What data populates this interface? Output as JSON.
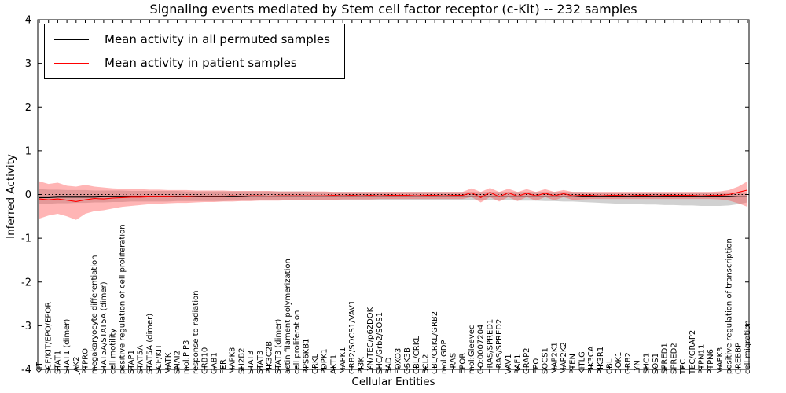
{
  "chart_data": {
    "type": "line",
    "title": "Signaling events mediated by Stem cell factor receptor (c-Kit) -- 232 samples",
    "xlabel": "Cellular Entities",
    "ylabel": "Inferred Activity",
    "ylim": [
      -4,
      4
    ],
    "yticks": [
      -4,
      -3,
      -2,
      -1,
      0,
      1,
      2,
      3,
      4
    ],
    "grid": false,
    "legend_position": "upper left",
    "zero_reference_line": 0,
    "legend": [
      {
        "label": "Mean activity in all permuted samples",
        "color": "#000000"
      },
      {
        "label": "Mean activity in patient samples",
        "color": "#ff0000"
      }
    ],
    "colors": {
      "patient_line": "#ff0000",
      "patient_band": "rgba(255,70,70,0.40)",
      "permuted_line": "#000000",
      "permuted_band": "rgba(140,140,140,0.40)",
      "zero_line": "#000000"
    },
    "categories": [
      "KIT",
      "SCF/KIT/EPO/EPOR",
      "STAT1",
      "STAT1 (dimer)",
      "JAK2",
      "PTPRO",
      "megakaryocyte differentiation",
      "STAT5A/STAT5A (dimer)",
      "cell motility",
      "positive regulation of cell proliferation",
      "STAP1",
      "STAT5A",
      "STAT5A (dimer)",
      "SCF/KIT",
      "MATK",
      "SNAI2",
      "mol:PIP3",
      "response to radiation",
      "GRB10",
      "GAB1",
      "FER",
      "MAPK8",
      "SH2B2",
      "STAT3",
      "STAT3",
      "PIK3C2B",
      "STAT3 (dimer)",
      "actin filament polymerization",
      "cell proliferation",
      "RPS6KB1",
      "CRKL",
      "PDPK1",
      "AKT1",
      "MAPK1",
      "GRB2/SOCS1/VAV1",
      "PI3K",
      "LYN/TEC/p62DOK",
      "SHC/Grb2/SOS1",
      "BAD",
      "FOXO3",
      "GSK3B",
      "CBL/CRKL",
      "BCL2",
      "CBL/CRKL/GRB2",
      "mol:GDP",
      "HRAS",
      "EPOR",
      "mol:Gleevec",
      "GO:0007204",
      "HRAS/SPRED1",
      "HRAS/SPRED2",
      "VAV1",
      "RAF1",
      "GRAP2",
      "EPO",
      "SOCS1",
      "MAP2K1",
      "MAP2K2",
      "PTEN",
      "KITLG",
      "PIK3CA",
      "PIK3R1",
      "CBL",
      "DOK1",
      "GRB2",
      "LYN",
      "SHC1",
      "SOS1",
      "SPRED1",
      "SPRED2",
      "TEC",
      "TEC/GRAP2",
      "PTPN11",
      "PTPN6",
      "MAPK3",
      "positive regulation of transcription",
      "CREBBP",
      "cell migration"
    ],
    "series": [
      {
        "name": "Mean activity in all permuted samples",
        "color": "#000000",
        "values": [
          -0.07,
          -0.07,
          -0.06,
          -0.06,
          -0.06,
          -0.06,
          -0.06,
          -0.05,
          -0.05,
          -0.05,
          -0.05,
          -0.05,
          -0.05,
          -0.05,
          -0.05,
          -0.05,
          -0.05,
          -0.05,
          -0.05,
          -0.05,
          -0.05,
          -0.05,
          -0.05,
          -0.04,
          -0.04,
          -0.04,
          -0.04,
          -0.04,
          -0.04,
          -0.04,
          -0.04,
          -0.04,
          -0.04,
          -0.04,
          -0.04,
          -0.04,
          -0.04,
          -0.04,
          -0.04,
          -0.04,
          -0.04,
          -0.04,
          -0.04,
          -0.04,
          -0.04,
          -0.04,
          -0.04,
          -0.04,
          -0.04,
          -0.04,
          -0.04,
          -0.04,
          -0.04,
          -0.04,
          -0.04,
          -0.04,
          -0.04,
          -0.04,
          -0.04,
          -0.05,
          -0.05,
          -0.05,
          -0.05,
          -0.05,
          -0.05,
          -0.05,
          -0.05,
          -0.05,
          -0.05,
          -0.05,
          -0.05,
          -0.05,
          -0.05,
          -0.05,
          -0.05,
          -0.05,
          -0.04,
          -0.04
        ]
      },
      {
        "name": "Mean activity in patient samples",
        "color": "#ff0000",
        "values": [
          -0.1,
          -0.12,
          -0.1,
          -0.13,
          -0.16,
          -0.12,
          -0.09,
          -0.1,
          -0.08,
          -0.07,
          -0.06,
          -0.06,
          -0.05,
          -0.05,
          -0.05,
          -0.04,
          -0.05,
          -0.04,
          -0.04,
          -0.04,
          -0.04,
          -0.03,
          -0.04,
          -0.03,
          -0.03,
          -0.04,
          -0.03,
          -0.03,
          -0.03,
          -0.03,
          -0.03,
          -0.03,
          -0.02,
          -0.03,
          -0.02,
          -0.03,
          -0.02,
          -0.03,
          -0.02,
          -0.02,
          -0.02,
          -0.03,
          -0.02,
          -0.02,
          -0.03,
          -0.02,
          -0.02,
          0.04,
          -0.07,
          0.05,
          -0.05,
          0.04,
          -0.04,
          0.03,
          -0.03,
          0.03,
          -0.03,
          0.02,
          -0.03,
          -0.02,
          -0.02,
          -0.03,
          -0.02,
          -0.02,
          -0.03,
          -0.02,
          -0.02,
          -0.03,
          -0.02,
          -0.02,
          -0.02,
          -0.02,
          -0.03,
          -0.02,
          -0.02,
          0.0,
          0.05,
          0.1
        ]
      }
    ],
    "bands": [
      {
        "name": "permuted samples spread",
        "color": "rgba(140,140,140,0.40)",
        "upper": [
          0.12,
          0.11,
          0.11,
          0.1,
          0.1,
          0.1,
          0.09,
          0.09,
          0.09,
          0.09,
          0.08,
          0.08,
          0.08,
          0.08,
          0.08,
          0.08,
          0.07,
          0.07,
          0.07,
          0.07,
          0.07,
          0.07,
          0.07,
          0.07,
          0.07,
          0.07,
          0.07,
          0.07,
          0.07,
          0.07,
          0.06,
          0.06,
          0.06,
          0.06,
          0.06,
          0.06,
          0.06,
          0.06,
          0.06,
          0.06,
          0.06,
          0.06,
          0.06,
          0.06,
          0.06,
          0.06,
          0.06,
          0.06,
          0.06,
          0.06,
          0.06,
          0.06,
          0.06,
          0.06,
          0.06,
          0.06,
          0.06,
          0.06,
          0.06,
          0.06,
          0.05,
          0.05,
          0.05,
          0.05,
          0.05,
          0.05,
          0.05,
          0.05,
          0.05,
          0.05,
          0.05,
          0.05,
          0.05,
          0.05,
          0.05,
          0.05,
          0.05,
          0.05
        ],
        "lower": [
          -0.22,
          -0.21,
          -0.2,
          -0.2,
          -0.19,
          -0.19,
          -0.18,
          -0.18,
          -0.17,
          -0.17,
          -0.16,
          -0.16,
          -0.16,
          -0.16,
          -0.16,
          -0.15,
          -0.15,
          -0.15,
          -0.15,
          -0.15,
          -0.15,
          -0.14,
          -0.14,
          -0.14,
          -0.13,
          -0.13,
          -0.13,
          -0.13,
          -0.12,
          -0.12,
          -0.12,
          -0.12,
          -0.12,
          -0.12,
          -0.12,
          -0.12,
          -0.12,
          -0.12,
          -0.12,
          -0.12,
          -0.12,
          -0.12,
          -0.12,
          -0.12,
          -0.12,
          -0.12,
          -0.12,
          -0.12,
          -0.13,
          -0.13,
          -0.13,
          -0.13,
          -0.14,
          -0.14,
          -0.14,
          -0.15,
          -0.15,
          -0.16,
          -0.16,
          -0.17,
          -0.18,
          -0.19,
          -0.2,
          -0.21,
          -0.22,
          -0.22,
          -0.23,
          -0.23,
          -0.24,
          -0.24,
          -0.25,
          -0.25,
          -0.26,
          -0.26,
          -0.26,
          -0.25,
          -0.22,
          -0.18
        ]
      },
      {
        "name": "patient samples spread",
        "color": "rgba(255,70,70,0.40)",
        "upper": [
          0.3,
          0.24,
          0.27,
          0.2,
          0.18,
          0.22,
          0.18,
          0.16,
          0.14,
          0.13,
          0.12,
          0.12,
          0.11,
          0.11,
          0.1,
          0.1,
          0.1,
          0.09,
          0.09,
          0.09,
          0.09,
          0.08,
          0.08,
          0.08,
          0.08,
          0.08,
          0.07,
          0.07,
          0.07,
          0.07,
          0.07,
          0.07,
          0.06,
          0.06,
          0.06,
          0.06,
          0.06,
          0.06,
          0.06,
          0.06,
          0.06,
          0.06,
          0.06,
          0.06,
          0.06,
          0.06,
          0.06,
          0.14,
          0.06,
          0.15,
          0.06,
          0.13,
          0.06,
          0.12,
          0.06,
          0.12,
          0.06,
          0.1,
          0.06,
          0.06,
          0.06,
          0.06,
          0.06,
          0.06,
          0.06,
          0.06,
          0.06,
          0.06,
          0.06,
          0.06,
          0.06,
          0.06,
          0.06,
          0.06,
          0.07,
          0.1,
          0.18,
          0.3
        ],
        "lower": [
          -0.55,
          -0.48,
          -0.44,
          -0.5,
          -0.58,
          -0.44,
          -0.38,
          -0.36,
          -0.32,
          -0.28,
          -0.26,
          -0.24,
          -0.22,
          -0.21,
          -0.2,
          -0.19,
          -0.19,
          -0.18,
          -0.17,
          -0.17,
          -0.16,
          -0.16,
          -0.15,
          -0.15,
          -0.14,
          -0.14,
          -0.14,
          -0.13,
          -0.13,
          -0.13,
          -0.12,
          -0.12,
          -0.12,
          -0.11,
          -0.11,
          -0.11,
          -0.11,
          -0.1,
          -0.1,
          -0.1,
          -0.1,
          -0.1,
          -0.1,
          -0.1,
          -0.1,
          -0.1,
          -0.1,
          -0.06,
          -0.18,
          -0.06,
          -0.16,
          -0.06,
          -0.15,
          -0.06,
          -0.14,
          -0.06,
          -0.13,
          -0.06,
          -0.12,
          -0.11,
          -0.1,
          -0.1,
          -0.1,
          -0.1,
          -0.1,
          -0.1,
          -0.1,
          -0.1,
          -0.1,
          -0.1,
          -0.1,
          -0.1,
          -0.1,
          -0.1,
          -0.11,
          -0.14,
          -0.2,
          -0.28
        ]
      }
    ]
  }
}
